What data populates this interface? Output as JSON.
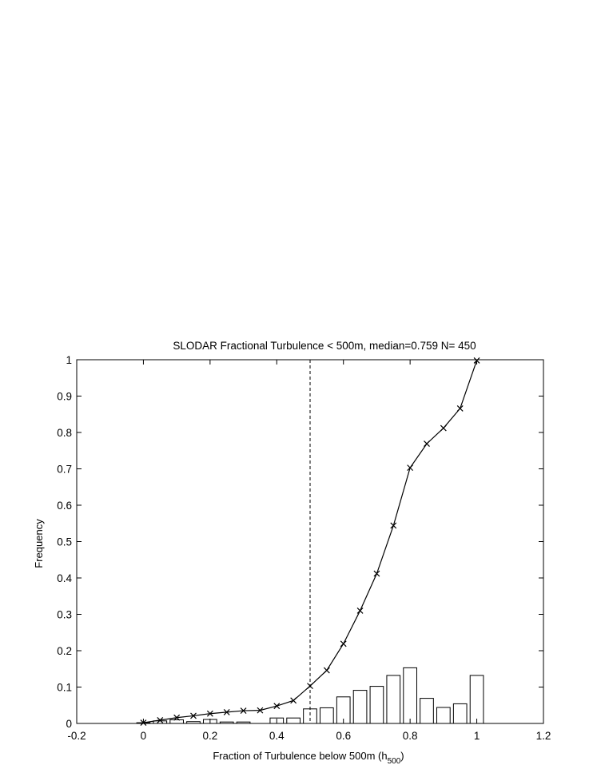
{
  "chart_data": {
    "type": "bar",
    "title": "SLODAR Fractional Turbulence < 500m, median=0.759 N= 450",
    "xlabel_main": "Fraction of Turbulence below 500m (h",
    "xlabel_sub": "500",
    "xlabel_close": ")",
    "ylabel": "Frequency",
    "xlim": [
      -0.2,
      1.2
    ],
    "ylim": [
      0,
      1
    ],
    "xticks": [
      -0.2,
      0,
      0.2,
      0.4,
      0.6,
      0.8,
      1,
      1.2
    ],
    "xtick_labels": [
      "-0.2",
      "0",
      "0.2",
      "0.4",
      "0.6",
      "0.8",
      "1",
      "1.2"
    ],
    "yticks": [
      0,
      0.1,
      0.2,
      0.3,
      0.4,
      0.5,
      0.6,
      0.7,
      0.8,
      0.9,
      1
    ],
    "ytick_labels": [
      "0",
      "0.1",
      "0.2",
      "0.3",
      "0.4",
      "0.5",
      "0.6",
      "0.7",
      "0.8",
      "0.9",
      "1"
    ],
    "bar_width": 0.04,
    "bars": {
      "x": [
        0,
        0.05,
        0.1,
        0.15,
        0.2,
        0.25,
        0.3,
        0.35,
        0.4,
        0.45,
        0.5,
        0.55,
        0.6,
        0.65,
        0.7,
        0.75,
        0.8,
        0.85,
        0.9,
        0.95,
        1.0
      ],
      "values": [
        0.002,
        0.007,
        0.01,
        0.005,
        0.011,
        0.004,
        0.004,
        0.0,
        0.015,
        0.015,
        0.04,
        0.043,
        0.073,
        0.091,
        0.102,
        0.132,
        0.153,
        0.069,
        0.044,
        0.054,
        0.132
      ]
    },
    "cumulative": {
      "x": [
        0,
        0.05,
        0.1,
        0.15,
        0.2,
        0.25,
        0.3,
        0.35,
        0.4,
        0.45,
        0.5,
        0.55,
        0.6,
        0.65,
        0.7,
        0.75,
        0.8,
        0.85,
        0.9,
        0.95,
        1.0
      ],
      "y": [
        0.002,
        0.009,
        0.016,
        0.021,
        0.027,
        0.031,
        0.035,
        0.036,
        0.048,
        0.063,
        0.103,
        0.146,
        0.219,
        0.31,
        0.412,
        0.544,
        0.703,
        0.769,
        0.812,
        0.866,
        0.998
      ],
      "marker": "x",
      "color": "#000000"
    },
    "reference_line": {
      "x": 0.5,
      "style": "dashed"
    },
    "grid": false,
    "legend": "none"
  }
}
